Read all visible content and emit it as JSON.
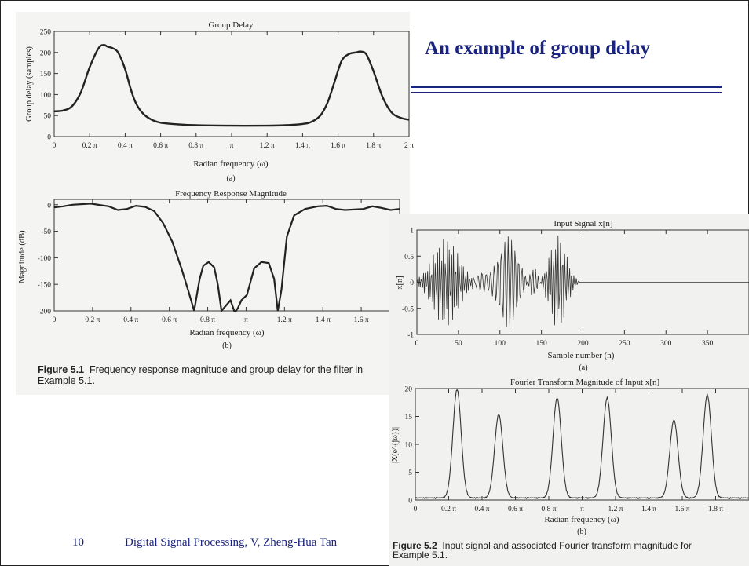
{
  "slide": {
    "title": "An example of group delay",
    "footer_page": "10",
    "footer_text": "Digital Signal Processing, V, Zheng-Hua Tan"
  },
  "figure1": {
    "caption_label": "Figure 5.1",
    "caption_text": "Frequency response magnitude and group delay for the filter in",
    "caption_text2": "Example 5.1."
  },
  "figure2": {
    "caption_label": "Figure 5.2",
    "caption_text": "Input signal and associated Fourier transform magnitude for",
    "caption_text2": "Example 5.1."
  },
  "chart_data": [
    {
      "type": "line",
      "title": "Group Delay",
      "xlabel": "Radian frequency (ω)",
      "ylabel": "Group delay (samples)",
      "sublabel": "(a)",
      "x_units": "π",
      "xlim": [
        0,
        2
      ],
      "ylim": [
        0,
        250
      ],
      "xtick_labels": [
        "0",
        "0.2 π",
        "0.4 π",
        "0.6 π",
        "0.8 π",
        "π",
        "1.2 π",
        "1.4 π",
        "1.6 π",
        "1.8 π",
        "2 π"
      ],
      "ytick_labels": [
        "0",
        "50",
        "100",
        "150",
        "200",
        "250"
      ],
      "x": [
        0,
        0.05,
        0.1,
        0.15,
        0.2,
        0.25,
        0.28,
        0.3,
        0.33,
        0.36,
        0.4,
        0.43,
        0.46,
        0.5,
        0.55,
        0.6,
        0.7,
        0.8,
        1.0,
        1.2,
        1.3,
        1.4,
        1.45,
        1.5,
        1.54,
        1.58,
        1.62,
        1.66,
        1.7,
        1.73,
        1.76,
        1.8,
        1.85,
        1.9,
        1.95,
        2.0
      ],
      "y": [
        60,
        62,
        72,
        105,
        165,
        210,
        218,
        214,
        210,
        200,
        160,
        115,
        80,
        55,
        40,
        33,
        29,
        27,
        26,
        26,
        27,
        30,
        35,
        50,
        80,
        130,
        180,
        196,
        200,
        202,
        195,
        155,
        95,
        58,
        45,
        40
      ]
    },
    {
      "type": "line",
      "title": "Frequency Response Magnitude",
      "xlabel": "Radian frequency (ω)",
      "ylabel": "Magnitude (dB)",
      "sublabel": "(b)",
      "x_units": "π",
      "xlim": [
        0,
        2
      ],
      "ylim": [
        -200,
        10
      ],
      "xtick_labels": [
        "0",
        "0.2 π",
        "0.4 π",
        "0.6 π",
        "0.8 π",
        "π",
        "1.2 π",
        "1.4 π",
        "1.6 π",
        "1.8 π"
      ],
      "ytick_labels": [
        "0",
        "-50",
        "-100",
        "-150",
        "-200"
      ],
      "x": [
        0,
        0.05,
        0.1,
        0.2,
        0.3,
        0.35,
        0.4,
        0.45,
        0.5,
        0.55,
        0.6,
        0.65,
        0.7,
        0.74,
        0.77,
        0.79,
        0.8,
        0.82,
        0.85,
        0.88,
        0.9,
        0.92,
        0.95,
        0.97,
        0.99,
        1.0,
        1.01,
        1.03,
        1.06,
        1.1,
        1.14,
        1.18,
        1.21,
        1.23,
        1.25,
        1.28,
        1.32,
        1.38,
        1.45,
        1.5,
        1.55,
        1.6,
        1.7,
        1.75,
        1.8,
        1.85,
        1.9
      ],
      "y": [
        -5,
        -3,
        0,
        2,
        -3,
        -10,
        -8,
        -2,
        -4,
        -12,
        -35,
        -70,
        -120,
        -165,
        -200,
        -160,
        -140,
        -115,
        -108,
        -118,
        -150,
        -200,
        -188,
        -180,
        -200,
        -200,
        -195,
        -180,
        -170,
        -120,
        -108,
        -110,
        -140,
        -200,
        -160,
        -60,
        -20,
        -8,
        -3,
        -2,
        -8,
        -10,
        -8,
        -3,
        -6,
        -10,
        -8
      ]
    },
    {
      "type": "line",
      "title": "Input Signal x[n]",
      "xlabel": "Sample number (n)",
      "ylabel": "x[n]",
      "sublabel": "(a)",
      "xlim": [
        0,
        400
      ],
      "ylim": [
        -1,
        1
      ],
      "xtick_labels": [
        "0",
        "50",
        "100",
        "150",
        "200",
        "250",
        "300",
        "350"
      ],
      "ytick_labels": [
        "1",
        "0.5",
        "0",
        "-0.5",
        "-1"
      ],
      "x": [
        0,
        60,
        80,
        100,
        130,
        145,
        175,
        190,
        400
      ],
      "y": [
        0,
        0.9,
        0.05,
        0.85,
        0.05,
        0.2,
        0.9,
        0,
        0
      ]
    },
    {
      "type": "line",
      "title": "Fourier Transform Magnitude of Input x[n]",
      "xlabel": "Radian frequency (ω)",
      "ylabel": "|X(e^{jω})|",
      "sublabel": "(b)",
      "x_units": "π",
      "xlim": [
        0,
        2
      ],
      "ylim": [
        0,
        20
      ],
      "xtick_labels": [
        "0",
        "0.2 π",
        "0.4 π",
        "0.6 π",
        "0.8 π",
        "π",
        "1.2 π",
        "1.4 π",
        "1.6 π",
        "1.8 π"
      ],
      "ytick_labels": [
        "0",
        "5",
        "10",
        "15",
        "20"
      ],
      "x": [
        0.25,
        0.5,
        0.85,
        1.15,
        1.55,
        1.75
      ],
      "y": [
        19.5,
        15,
        18,
        18,
        14,
        18.5
      ]
    }
  ]
}
